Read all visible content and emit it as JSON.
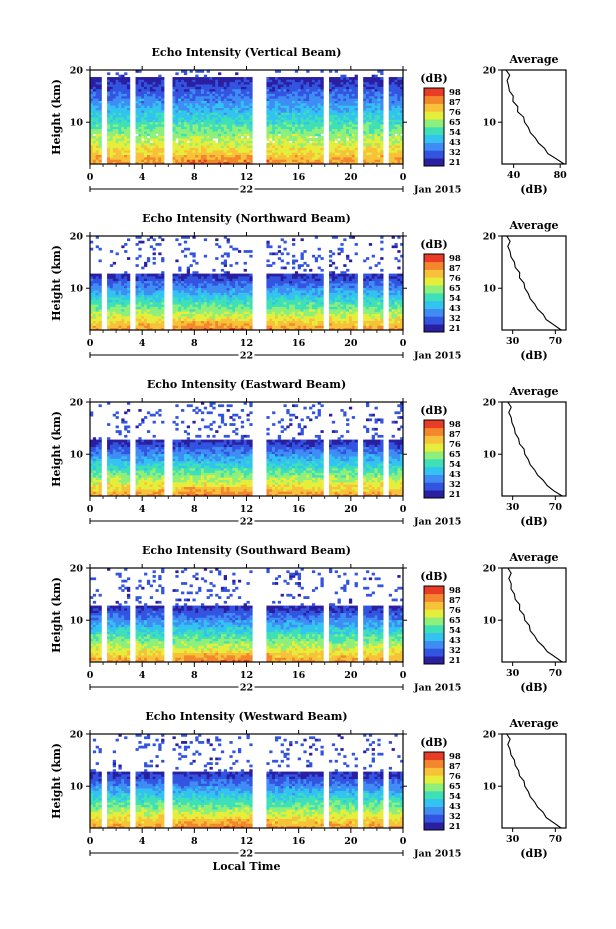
{
  "chart_data": [
    {
      "type": "heatmap",
      "title": "Echo Intensity (Vertical Beam)",
      "beam": "vertical",
      "ylabel": "Height (km)",
      "y_ticks": [
        "20",
        "10"
      ],
      "x_ticks": [
        "0",
        "4",
        "8",
        "12",
        "16",
        "20",
        "0"
      ],
      "day_label": "22",
      "date_label": "Jan 2015",
      "colorbar": {
        "unit": "(dB)",
        "ticks": [
          "98",
          "87",
          "76",
          "65",
          "54",
          "43",
          "32",
          "21"
        ]
      },
      "profile": {
        "title": "Average",
        "xlabel": "(dB)",
        "x_ticks": [
          "40",
          "80"
        ],
        "x_range": [
          30,
          85
        ],
        "y_ticks": [
          "20",
          "10"
        ],
        "height_km": [
          2,
          3,
          4,
          5,
          6,
          7,
          8,
          9,
          10,
          11,
          12,
          13,
          14,
          15,
          16,
          17,
          18,
          19,
          20
        ],
        "values_db": [
          84,
          76,
          70,
          66,
          62,
          58,
          55,
          52,
          50,
          48,
          44,
          43,
          40,
          39,
          37,
          35,
          35,
          36,
          34
        ]
      },
      "data_gaps_hours": [
        1.0,
        3.3,
        6.0,
        12.6,
        13.2,
        18.2,
        20.7,
        22.6
      ]
    },
    {
      "type": "heatmap",
      "title": "Echo Intensity (Northward Beam)",
      "beam": "north",
      "ylabel": "Height (km)",
      "y_ticks": [
        "20",
        "10"
      ],
      "x_ticks": [
        "0",
        "4",
        "8",
        "12",
        "16",
        "20",
        "0"
      ],
      "day_label": "22",
      "date_label": "Jan 2015",
      "colorbar": {
        "unit": "(dB)",
        "ticks": [
          "98",
          "87",
          "76",
          "65",
          "54",
          "43",
          "32",
          "21"
        ]
      },
      "profile": {
        "title": "Average",
        "xlabel": "(dB)",
        "x_ticks": [
          "30",
          "70"
        ],
        "x_range": [
          20,
          80
        ],
        "y_ticks": [
          "20",
          "10"
        ],
        "height_km": [
          2,
          3,
          4,
          5,
          6,
          7,
          8,
          9,
          10,
          11,
          12,
          13,
          14,
          15,
          16,
          17,
          18,
          19,
          20
        ],
        "values_db": [
          76,
          68,
          62,
          58,
          54,
          50,
          47,
          44,
          42,
          40,
          37,
          36,
          33,
          31,
          29,
          27,
          26,
          27,
          25
        ]
      },
      "data_gaps_hours": [
        1.0,
        3.3,
        6.0,
        12.6,
        13.2,
        18.2,
        20.7,
        22.6
      ]
    },
    {
      "type": "heatmap",
      "title": "Echo Intensity (Eastward Beam)",
      "beam": "east",
      "ylabel": "Height (km)",
      "y_ticks": [
        "20",
        "10"
      ],
      "x_ticks": [
        "0",
        "4",
        "8",
        "12",
        "16",
        "20",
        "0"
      ],
      "day_label": "22",
      "date_label": "Jan 2015",
      "colorbar": {
        "unit": "(dB)",
        "ticks": [
          "98",
          "87",
          "76",
          "65",
          "54",
          "43",
          "32",
          "21"
        ]
      },
      "profile": {
        "title": "Average",
        "xlabel": "(dB)",
        "x_ticks": [
          "30",
          "70"
        ],
        "x_range": [
          20,
          80
        ],
        "y_ticks": [
          "20",
          "10"
        ],
        "height_km": [
          2,
          3,
          4,
          5,
          6,
          7,
          8,
          9,
          10,
          11,
          12,
          13,
          14,
          15,
          16,
          17,
          18,
          19,
          20
        ],
        "values_db": [
          77,
          68,
          63,
          58,
          54,
          50,
          47,
          44,
          42,
          40,
          37,
          35,
          33,
          31,
          30,
          28,
          27,
          28,
          26
        ]
      },
      "data_gaps_hours": [
        1.0,
        3.3,
        6.0,
        12.6,
        13.2,
        18.2,
        20.7,
        22.6
      ]
    },
    {
      "type": "heatmap",
      "title": "Echo Intensity (Southward Beam)",
      "beam": "south",
      "ylabel": "Height (km)",
      "y_ticks": [
        "20",
        "10"
      ],
      "x_ticks": [
        "0",
        "4",
        "8",
        "12",
        "16",
        "20",
        "0"
      ],
      "day_label": "22",
      "date_label": "Jan 2015",
      "colorbar": {
        "unit": "(dB)",
        "ticks": [
          "98",
          "87",
          "76",
          "65",
          "54",
          "43",
          "32",
          "21"
        ]
      },
      "profile": {
        "title": "Average",
        "xlabel": "(dB)",
        "x_ticks": [
          "30",
          "70"
        ],
        "x_range": [
          20,
          80
        ],
        "y_ticks": [
          "20",
          "10"
        ],
        "height_km": [
          2,
          3,
          4,
          5,
          6,
          7,
          8,
          9,
          10,
          11,
          12,
          13,
          14,
          15,
          16,
          17,
          18,
          19,
          20
        ],
        "values_db": [
          77,
          69,
          63,
          58,
          54,
          50,
          47,
          45,
          42,
          40,
          37,
          36,
          33,
          31,
          29,
          28,
          27,
          28,
          26
        ]
      },
      "data_gaps_hours": [
        1.0,
        3.3,
        6.0,
        12.6,
        13.2,
        18.2,
        20.7,
        22.6
      ]
    },
    {
      "type": "heatmap",
      "title": "Echo Intensity (Westward Beam)",
      "beam": "west",
      "ylabel": "Height (km)",
      "y_ticks": [
        "20",
        "10"
      ],
      "x_ticks": [
        "0",
        "4",
        "8",
        "12",
        "16",
        "20",
        "0"
      ],
      "day_label": "22",
      "date_label": "Jan 2015",
      "xlabel": "Local Time",
      "colorbar": {
        "unit": "(dB)",
        "ticks": [
          "98",
          "87",
          "76",
          "65",
          "54",
          "43",
          "32",
          "21"
        ]
      },
      "profile": {
        "title": "Average",
        "xlabel": "(dB)",
        "x_ticks": [
          "30",
          "70"
        ],
        "x_range": [
          20,
          80
        ],
        "y_ticks": [
          "20",
          "10"
        ],
        "height_km": [
          2,
          3,
          4,
          5,
          6,
          7,
          8,
          9,
          10,
          11,
          12,
          13,
          14,
          15,
          16,
          17,
          18,
          19,
          20
        ],
        "values_db": [
          76,
          68,
          62,
          58,
          54,
          50,
          47,
          44,
          42,
          40,
          37,
          35,
          33,
          31,
          29,
          27,
          26,
          27,
          25
        ]
      },
      "data_gaps_hours": [
        1.0,
        3.3,
        6.0,
        12.6,
        13.2,
        18.2,
        20.7,
        22.6
      ]
    }
  ],
  "colormap": [
    "#2a1fa0",
    "#3354e0",
    "#3f8cf5",
    "#33c3f0",
    "#3fe0b8",
    "#8ef07a",
    "#e6ee3c",
    "#f7c23a",
    "#f4862d",
    "#e83c26"
  ]
}
